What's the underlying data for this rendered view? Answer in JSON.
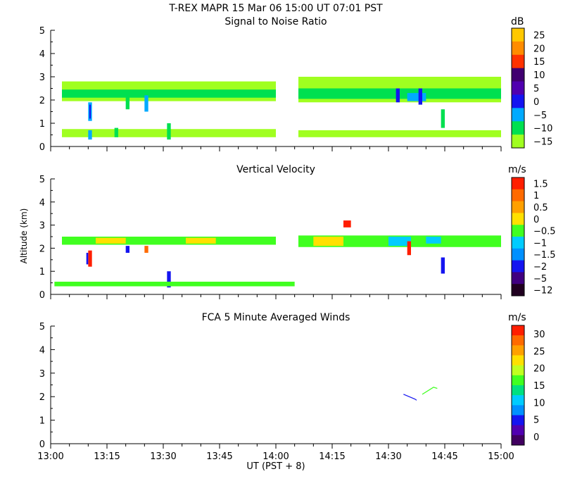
{
  "figure": {
    "title": "T-REX   MAPR 15 Mar 06   15:00 UT   07:01   PST",
    "xlabel": "UT  (PST + 8)",
    "ylabel": "Altitude (km)",
    "x_tick_labels": [
      "13:00",
      "13:15",
      "13:30",
      "13:45",
      "14:00",
      "14:15",
      "14:30",
      "14:45",
      "15:00"
    ],
    "x_range_min": [
      0,
      120
    ],
    "x_start": "13:00",
    "x_end": "15:00"
  },
  "chart_data": [
    {
      "type": "heatmap",
      "title": "Signal to Noise Ratio",
      "ylim": [
        0,
        5
      ],
      "y_tick_labels": [
        "0",
        "1",
        "2",
        "3",
        "4",
        "5"
      ],
      "y_values": [
        0,
        1,
        2,
        3,
        4,
        5
      ],
      "colorbar": {
        "unit": "dB",
        "labels": [
          "25",
          "20",
          "15",
          "10",
          "5",
          "0",
          "−5",
          "−10",
          "−15"
        ],
        "colors": [
          "#ffc800",
          "#ff8c00",
          "#ff3200",
          "#400070",
          "#5000b0",
          "#1414f0",
          "#00aaff",
          "#00e050",
          "#a0ff20"
        ]
      },
      "data_gap_minutes": [
        60,
        66
      ],
      "bands": [
        {
          "x0": 3,
          "x1": 60,
          "y0": 0.4,
          "y1": 0.75,
          "color": "#a0ff20"
        },
        {
          "x0": 3,
          "x1": 60,
          "y0": 1.95,
          "y1": 2.8,
          "color": "#a0ff20"
        },
        {
          "x0": 3,
          "x1": 60,
          "y0": 2.1,
          "y1": 2.45,
          "color": "#00e050"
        },
        {
          "x0": 66,
          "x1": 120,
          "y0": 0.4,
          "y1": 0.7,
          "color": "#a0ff20"
        },
        {
          "x0": 66,
          "x1": 120,
          "y0": 1.9,
          "y1": 3.0,
          "color": "#a0ff20"
        },
        {
          "x0": 66,
          "x1": 120,
          "y0": 2.05,
          "y1": 2.5,
          "color": "#00e050"
        },
        {
          "x0": 95,
          "x1": 100,
          "y0": 1.95,
          "y1": 2.3,
          "color": "#00aaff"
        },
        {
          "x0": 10,
          "x1": 11,
          "y0": 1.1,
          "y1": 1.9,
          "color": "#00aaff"
        },
        {
          "x0": 10.3,
          "x1": 10.7,
          "y0": 1.2,
          "y1": 1.8,
          "color": "#1414f0"
        },
        {
          "x0": 20,
          "x1": 21,
          "y0": 1.6,
          "y1": 2.4,
          "color": "#00e050"
        },
        {
          "x0": 25,
          "x1": 26,
          "y0": 1.5,
          "y1": 2.2,
          "color": "#00aaff"
        },
        {
          "x0": 31,
          "x1": 32,
          "y0": 0.3,
          "y1": 1.0,
          "color": "#00e050"
        },
        {
          "x0": 92,
          "x1": 93,
          "y0": 1.9,
          "y1": 2.5,
          "color": "#1414f0"
        },
        {
          "x0": 98,
          "x1": 99,
          "y0": 1.8,
          "y1": 2.5,
          "color": "#1414f0"
        },
        {
          "x0": 104,
          "x1": 105,
          "y0": 0.8,
          "y1": 1.6,
          "color": "#00e050"
        },
        {
          "x0": 10,
          "x1": 11,
          "y0": 0.3,
          "y1": 0.7,
          "color": "#00aaff"
        },
        {
          "x0": 17,
          "x1": 18,
          "y0": 0.4,
          "y1": 0.8,
          "color": "#00e050"
        }
      ]
    },
    {
      "type": "heatmap",
      "title": "Vertical Velocity",
      "ylim": [
        0,
        5
      ],
      "y_tick_labels": [
        "0",
        "1",
        "2",
        "3",
        "4",
        "5"
      ],
      "y_values": [
        0,
        1,
        2,
        3,
        4,
        5
      ],
      "colorbar": {
        "unit": "m/s",
        "labels": [
          "1.5",
          "1",
          "0.5",
          "0",
          "−0.5",
          "−1",
          "−1.5",
          "−2",
          "−5",
          "−12"
        ],
        "colors": [
          "#ff1e00",
          "#ff6a00",
          "#ffa000",
          "#ffe000",
          "#40ff20",
          "#00ccff",
          "#0090ff",
          "#1414f0",
          "#400080",
          "#200020"
        ]
      },
      "bands": [
        {
          "x0": 3,
          "x1": 60,
          "y0": 2.15,
          "y1": 2.5,
          "color": "#40ff20"
        },
        {
          "x0": 66,
          "x1": 120,
          "y0": 2.05,
          "y1": 2.55,
          "color": "#40ff20"
        },
        {
          "x0": 12,
          "x1": 20,
          "y0": 2.2,
          "y1": 2.45,
          "color": "#ffe000"
        },
        {
          "x0": 36,
          "x1": 44,
          "y0": 2.2,
          "y1": 2.45,
          "color": "#ffe000"
        },
        {
          "x0": 70,
          "x1": 78,
          "y0": 2.1,
          "y1": 2.5,
          "color": "#ffe000"
        },
        {
          "x0": 90,
          "x1": 96,
          "y0": 2.1,
          "y1": 2.5,
          "color": "#00ccff"
        },
        {
          "x0": 100,
          "x1": 104,
          "y0": 2.2,
          "y1": 2.5,
          "color": "#00ccff"
        },
        {
          "x0": 10,
          "x1": 11,
          "y0": 1.2,
          "y1": 1.9,
          "color": "#ff1e00"
        },
        {
          "x0": 9.5,
          "x1": 10,
          "y0": 1.3,
          "y1": 1.8,
          "color": "#1414f0"
        },
        {
          "x0": 31,
          "x1": 32,
          "y0": 0.3,
          "y1": 1.0,
          "color": "#1414f0"
        },
        {
          "x0": 95,
          "x1": 96,
          "y0": 1.7,
          "y1": 2.3,
          "color": "#ff1e00"
        },
        {
          "x0": 104,
          "x1": 105,
          "y0": 0.9,
          "y1": 1.6,
          "color": "#1414f0"
        },
        {
          "x0": 20,
          "x1": 21,
          "y0": 1.8,
          "y1": 2.1,
          "color": "#1414f0"
        },
        {
          "x0": 25,
          "x1": 26,
          "y0": 1.8,
          "y1": 2.1,
          "color": "#ff6a00"
        },
        {
          "x0": 1,
          "x1": 65,
          "y0": 0.35,
          "y1": 0.55,
          "color": "#40ff20"
        },
        {
          "x0": 78,
          "x1": 80,
          "y0": 2.9,
          "y1": 3.2,
          "color": "#ff1e00"
        }
      ]
    },
    {
      "type": "line",
      "title": "FCA 5 Minute Averaged Winds",
      "ylim": [
        0,
        5
      ],
      "y_tick_labels": [
        "0",
        "1",
        "2",
        "3",
        "4",
        "5"
      ],
      "y_values": [
        0,
        1,
        2,
        3,
        4,
        5
      ],
      "colorbar": {
        "unit": "m/s",
        "labels": [
          "30",
          "25",
          "20",
          "15",
          "10",
          "5",
          "0"
        ],
        "colors": [
          "#ff1e00",
          "#ff6a00",
          "#ffa000",
          "#ffe000",
          "#c0ff20",
          "#40ff20",
          "#00e080",
          "#00ccff",
          "#0090ff",
          "#1414f0",
          "#5000b0",
          "#400060"
        ]
      },
      "series": [
        {
          "name": "wind-barb-1",
          "x": [
            94,
            97,
            97.5
          ],
          "y": [
            2.1,
            1.9,
            1.85
          ],
          "color": "#1414f0"
        },
        {
          "name": "wind-barb-2",
          "x": [
            99,
            101,
            102,
            103
          ],
          "y": [
            2.1,
            2.3,
            2.4,
            2.35
          ],
          "color": "#40ff20"
        }
      ]
    }
  ]
}
